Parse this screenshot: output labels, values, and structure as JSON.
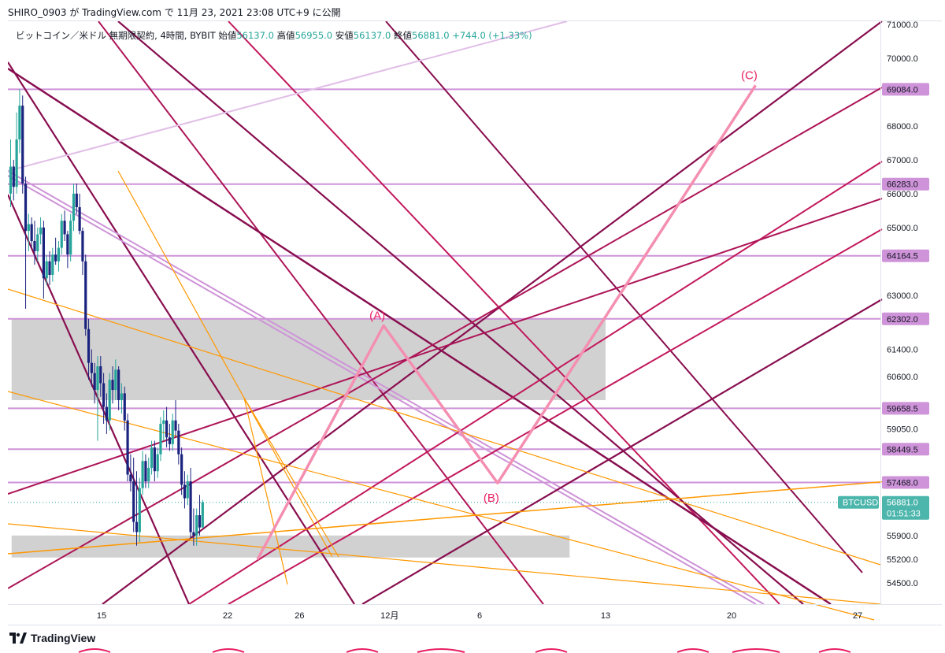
{
  "header": {
    "publish_line": "SHIRO_0903 が TradingView.com で 11月 23, 2021 23:08 UTC+9 に公開"
  },
  "symbol": {
    "name": "ビットコイン／米ドル 無期限契約, 4時間, BYBIT",
    "open_label": "始値",
    "open": "56137.0",
    "high_label": "高値",
    "high": "56955.0",
    "low_label": "安値",
    "low": "56137.0",
    "close_label": "終値",
    "close": "56881.0",
    "change": "+744.0 (+1.33%)"
  },
  "footer": {
    "brand": "TradingView"
  },
  "colors": {
    "up": "#26a69a",
    "down": "#1a237e",
    "wave": "#f48fb1",
    "level": "#ce93d8",
    "orange": "#ff9800",
    "zone": "#bdbdbd",
    "price_badge": "#4db6ac",
    "wave_label": "#e91e63"
  },
  "chart_data": {
    "type": "candlestick",
    "symbol": "BTCUSD",
    "timeframe": "4時間",
    "ylim": [
      53800,
      71100
    ],
    "y_ticks": [
      "71000.0",
      "70000.0",
      "68000.0",
      "67000.0",
      "66000.0",
      "65000.0",
      "63000.0",
      "61400.0",
      "60600.0",
      "59050.0",
      "55900.0",
      "55200.0",
      "54500.0"
    ],
    "x_ticks": [
      "15",
      "22",
      "26",
      "12月",
      "6",
      "13",
      "20",
      "27"
    ],
    "price_levels": [
      {
        "price": 69084.0,
        "label": "69084.0"
      },
      {
        "price": 66283.0,
        "label": "66283.0"
      },
      {
        "price": 64164.5,
        "label": "64164.5"
      },
      {
        "price": 62302.0,
        "label": "62302.0"
      },
      {
        "price": 59658.5,
        "label": "59658.5"
      },
      {
        "price": 58449.5,
        "label": "58449.5"
      },
      {
        "price": 57468.0,
        "label": "57468.0"
      }
    ],
    "current_price": {
      "symbol": "BTCUSD",
      "price": "56881.0",
      "countdown": "01:51:33"
    },
    "zones": [
      {
        "from_date": "2021-11-10",
        "to_date": "2021-12-13",
        "top": 62302,
        "bottom": 59900
      },
      {
        "from_date": "2021-11-10",
        "to_date": "2021-12-11",
        "top": 55900,
        "bottom": 55250
      }
    ],
    "wave_projection": [
      {
        "label": "",
        "date": "2021-11-23 16:00",
        "price": 55200
      },
      {
        "label": "(A)",
        "date": "2021-11-30 16:00",
        "price": 62100
      },
      {
        "label": "(B)",
        "date": "2021-12-07 00:00",
        "price": 57450
      },
      {
        "label": "(C)",
        "date": "2021-12-21 08:00",
        "price": 69200
      }
    ],
    "candles": [
      {
        "t": 0,
        "o": 66000,
        "h": 67600,
        "l": 65600,
        "c": 66800
      },
      {
        "t": 1,
        "o": 66800,
        "h": 67000,
        "l": 65800,
        "c": 66200
      },
      {
        "t": 2,
        "o": 66200,
        "h": 68400,
        "l": 66000,
        "c": 67600
      },
      {
        "t": 3,
        "o": 67600,
        "h": 69084,
        "l": 67200,
        "c": 68600
      },
      {
        "t": 4,
        "o": 68600,
        "h": 68900,
        "l": 66000,
        "c": 66300
      },
      {
        "t": 5,
        "o": 66300,
        "h": 66500,
        "l": 62600,
        "c": 64900
      },
      {
        "t": 6,
        "o": 64900,
        "h": 65400,
        "l": 64300,
        "c": 65100
      },
      {
        "t": 7,
        "o": 65100,
        "h": 65300,
        "l": 64400,
        "c": 64600
      },
      {
        "t": 8,
        "o": 64600,
        "h": 65200,
        "l": 63900,
        "c": 64300
      },
      {
        "t": 9,
        "o": 64300,
        "h": 65000,
        "l": 64000,
        "c": 64800
      },
      {
        "t": 10,
        "o": 64800,
        "h": 65300,
        "l": 64500,
        "c": 65000
      },
      {
        "t": 11,
        "o": 65000,
        "h": 65200,
        "l": 62900,
        "c": 63500
      },
      {
        "t": 12,
        "o": 63500,
        "h": 64200,
        "l": 63300,
        "c": 64000
      },
      {
        "t": 13,
        "o": 64000,
        "h": 64300,
        "l": 63300,
        "c": 63600
      },
      {
        "t": 14,
        "o": 63600,
        "h": 64400,
        "l": 63400,
        "c": 64200
      },
      {
        "t": 15,
        "o": 64200,
        "h": 64700,
        "l": 63900,
        "c": 64000
      },
      {
        "t": 16,
        "o": 64000,
        "h": 64600,
        "l": 63700,
        "c": 64400
      },
      {
        "t": 17,
        "o": 64400,
        "h": 65400,
        "l": 64200,
        "c": 65200
      },
      {
        "t": 18,
        "o": 65200,
        "h": 65500,
        "l": 64600,
        "c": 64800
      },
      {
        "t": 19,
        "o": 64800,
        "h": 64900,
        "l": 63800,
        "c": 64200
      },
      {
        "t": 20,
        "o": 64200,
        "h": 65400,
        "l": 64000,
        "c": 65200
      },
      {
        "t": 21,
        "o": 65200,
        "h": 66300,
        "l": 64900,
        "c": 66000
      },
      {
        "t": 22,
        "o": 66000,
        "h": 66300,
        "l": 65400,
        "c": 65600
      },
      {
        "t": 23,
        "o": 65600,
        "h": 66000,
        "l": 64800,
        "c": 64900
      },
      {
        "t": 24,
        "o": 64900,
        "h": 65000,
        "l": 63600,
        "c": 64000
      },
      {
        "t": 25,
        "o": 64000,
        "h": 64200,
        "l": 61800,
        "c": 62000
      },
      {
        "t": 26,
        "o": 62000,
        "h": 62300,
        "l": 60500,
        "c": 61000
      },
      {
        "t": 27,
        "o": 61000,
        "h": 61400,
        "l": 60300,
        "c": 60700
      },
      {
        "t": 28,
        "o": 60700,
        "h": 61000,
        "l": 59800,
        "c": 60200
      },
      {
        "t": 29,
        "o": 60200,
        "h": 61200,
        "l": 58700,
        "c": 60900
      },
      {
        "t": 30,
        "o": 60900,
        "h": 61200,
        "l": 60000,
        "c": 60400
      },
      {
        "t": 31,
        "o": 60400,
        "h": 60700,
        "l": 59200,
        "c": 59700
      },
      {
        "t": 32,
        "o": 59700,
        "h": 60100,
        "l": 58900,
        "c": 59300
      },
      {
        "t": 33,
        "o": 59300,
        "h": 60700,
        "l": 59000,
        "c": 60500
      },
      {
        "t": 34,
        "o": 60500,
        "h": 60900,
        "l": 59800,
        "c": 60200
      },
      {
        "t": 35,
        "o": 60200,
        "h": 61100,
        "l": 59900,
        "c": 60800
      },
      {
        "t": 36,
        "o": 60800,
        "h": 60900,
        "l": 59600,
        "c": 59900
      },
      {
        "t": 37,
        "o": 59900,
        "h": 60400,
        "l": 59500,
        "c": 60100
      },
      {
        "t": 38,
        "o": 60100,
        "h": 60300,
        "l": 59000,
        "c": 59300
      },
      {
        "t": 39,
        "o": 59300,
        "h": 59500,
        "l": 57500,
        "c": 57700
      },
      {
        "t": 40,
        "o": 57700,
        "h": 58300,
        "l": 57200,
        "c": 57500
      },
      {
        "t": 41,
        "o": 57500,
        "h": 58200,
        "l": 56000,
        "c": 56300
      },
      {
        "t": 42,
        "o": 56300,
        "h": 57800,
        "l": 55600,
        "c": 56000
      },
      {
        "t": 43,
        "o": 56000,
        "h": 57600,
        "l": 55700,
        "c": 57300
      },
      {
        "t": 44,
        "o": 57300,
        "h": 58400,
        "l": 57100,
        "c": 58100
      },
      {
        "t": 45,
        "o": 58100,
        "h": 58300,
        "l": 57300,
        "c": 57500
      },
      {
        "t": 46,
        "o": 57500,
        "h": 58200,
        "l": 57300,
        "c": 57900
      },
      {
        "t": 47,
        "o": 57900,
        "h": 58700,
        "l": 57700,
        "c": 58500
      },
      {
        "t": 48,
        "o": 58500,
        "h": 58700,
        "l": 57500,
        "c": 57800
      },
      {
        "t": 49,
        "o": 57800,
        "h": 58500,
        "l": 57600,
        "c": 58300
      },
      {
        "t": 50,
        "o": 58300,
        "h": 59400,
        "l": 58100,
        "c": 59200
      },
      {
        "t": 51,
        "o": 59200,
        "h": 59600,
        "l": 58700,
        "c": 59300
      },
      {
        "t": 52,
        "o": 59300,
        "h": 59700,
        "l": 58500,
        "c": 58800
      },
      {
        "t": 53,
        "o": 58800,
        "h": 59200,
        "l": 58400,
        "c": 58600
      },
      {
        "t": 54,
        "o": 58600,
        "h": 59500,
        "l": 58400,
        "c": 59300
      },
      {
        "t": 55,
        "o": 59300,
        "h": 59900,
        "l": 58800,
        "c": 59000
      },
      {
        "t": 56,
        "o": 59000,
        "h": 59200,
        "l": 58000,
        "c": 58300
      },
      {
        "t": 57,
        "o": 58300,
        "h": 58500,
        "l": 57100,
        "c": 57400
      },
      {
        "t": 58,
        "o": 57400,
        "h": 57800,
        "l": 56700,
        "c": 57000
      },
      {
        "t": 59,
        "o": 57000,
        "h": 57700,
        "l": 56800,
        "c": 57500
      },
      {
        "t": 60,
        "o": 57500,
        "h": 57900,
        "l": 55800,
        "c": 56000
      },
      {
        "t": 61,
        "o": 56000,
        "h": 56700,
        "l": 55600,
        "c": 55900
      },
      {
        "t": 62,
        "o": 55900,
        "h": 56700,
        "l": 55600,
        "c": 56500
      },
      {
        "t": 63,
        "o": 56500,
        "h": 57100,
        "l": 55900,
        "c": 56137
      },
      {
        "t": 64,
        "o": 56137,
        "h": 56955,
        "l": 56137,
        "c": 56881
      }
    ]
  }
}
